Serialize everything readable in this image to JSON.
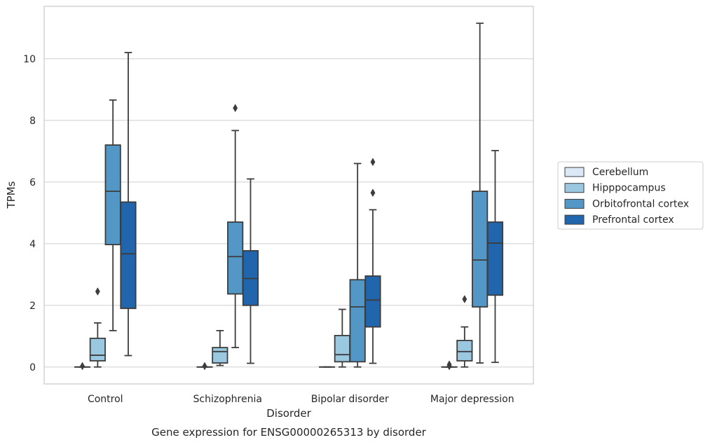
{
  "chart_data": {
    "type": "box",
    "title": "Gene expression for ENSG00000265313 by disorder",
    "xlabel": "Disorder",
    "ylabel": "TPMs",
    "ylim": [
      -0.55,
      11.7
    ],
    "yticks": [
      0,
      2,
      4,
      6,
      8,
      10
    ],
    "grid": "horizontal",
    "legend_position": "right",
    "categories": [
      "Control",
      "Schizophrenia",
      "Bipolar disorder",
      "Major depression"
    ],
    "series": [
      {
        "name": "Cerebellum",
        "color": "#dbe9f6",
        "boxes": [
          {
            "q1": 0.0,
            "median": 0.0,
            "q3": 0.0,
            "whisker_low": 0.0,
            "whisker_high": 0.0,
            "outliers": [
              0.03
            ]
          },
          {
            "q1": 0.0,
            "median": 0.0,
            "q3": 0.0,
            "whisker_low": 0.0,
            "whisker_high": 0.0,
            "outliers": [
              0.03
            ]
          },
          {
            "q1": 0.0,
            "median": 0.0,
            "q3": 0.0,
            "whisker_low": 0.0,
            "whisker_high": 0.0,
            "outliers": []
          },
          {
            "q1": 0.0,
            "median": 0.0,
            "q3": 0.0,
            "whisker_low": 0.0,
            "whisker_high": 0.0,
            "outliers": [
              0.03,
              0.08
            ]
          }
        ]
      },
      {
        "name": "Hipppocampus",
        "color": "#9ac8e0",
        "boxes": [
          {
            "q1": 0.2,
            "median": 0.38,
            "q3": 0.93,
            "whisker_low": 0.0,
            "whisker_high": 1.43,
            "outliers": [
              2.45
            ]
          },
          {
            "q1": 0.13,
            "median": 0.5,
            "q3": 0.63,
            "whisker_low": 0.05,
            "whisker_high": 1.18,
            "outliers": []
          },
          {
            "q1": 0.17,
            "median": 0.4,
            "q3": 1.02,
            "whisker_low": 0.0,
            "whisker_high": 1.87,
            "outliers": []
          },
          {
            "q1": 0.2,
            "median": 0.5,
            "q3": 0.86,
            "whisker_low": 0.0,
            "whisker_high": 1.3,
            "outliers": [
              2.2
            ]
          }
        ]
      },
      {
        "name": "Orbitofrontal cortex",
        "color": "#5297c6",
        "boxes": [
          {
            "q1": 3.97,
            "median": 5.7,
            "q3": 7.2,
            "whisker_low": 1.18,
            "whisker_high": 8.66,
            "outliers": []
          },
          {
            "q1": 2.37,
            "median": 3.58,
            "q3": 4.7,
            "whisker_low": 0.63,
            "whisker_high": 7.67,
            "outliers": [
              8.4
            ]
          },
          {
            "q1": 0.17,
            "median": 1.95,
            "q3": 2.83,
            "whisker_low": 0.0,
            "whisker_high": 6.6,
            "outliers": []
          },
          {
            "q1": 1.95,
            "median": 3.47,
            "q3": 5.7,
            "whisker_low": 0.13,
            "whisker_high": 11.15,
            "outliers": []
          }
        ]
      },
      {
        "name": "Prefrontal cortex",
        "color": "#2166ac",
        "boxes": [
          {
            "q1": 1.9,
            "median": 3.67,
            "q3": 5.35,
            "whisker_low": 0.37,
            "whisker_high": 10.2,
            "outliers": []
          },
          {
            "q1": 2.0,
            "median": 2.87,
            "q3": 3.77,
            "whisker_low": 0.12,
            "whisker_high": 6.1,
            "outliers": []
          },
          {
            "q1": 1.3,
            "median": 2.17,
            "q3": 2.95,
            "whisker_low": 0.12,
            "whisker_high": 5.1,
            "outliers": [
              5.65,
              6.65
            ]
          },
          {
            "q1": 2.33,
            "median": 4.02,
            "q3": 4.7,
            "whisker_low": 0.15,
            "whisker_high": 7.02,
            "outliers": []
          }
        ]
      }
    ]
  }
}
